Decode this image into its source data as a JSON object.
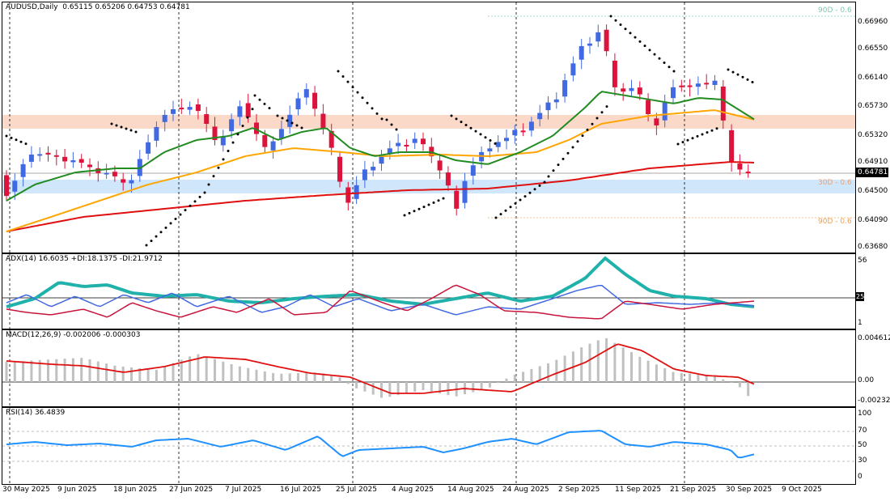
{
  "symbol_title": "AUDUSD,Daily  0.65115 0.65206 0.64753 0.64781",
  "colors": {
    "bull": "#4169e1",
    "bear": "#dc143c",
    "sma_fast": "#228b22",
    "sma_mid": "#ffa500",
    "sma_slow": "#e01010",
    "adx": "#20b2aa",
    "plus_di": "#4169e1",
    "minus_di": "#c8143c",
    "macd_hist": "#c0c0c0",
    "macd_signal": "#e01010",
    "rsi": "#1e90ff",
    "resistance_zone": "#fbd9c8",
    "support_zone": "#cfe6fb"
  },
  "price_axis": [
    "0.66960",
    "0.66550",
    "0.66140",
    "0.65730",
    "0.65320",
    "0.64910",
    "0.64500",
    "0.64090",
    "0.63680"
  ],
  "current_price": "0.64781",
  "level_labels": {
    "top": "90D - 0.6",
    "mid": "30D - 0.6",
    "bottom": "90D - 0.6"
  },
  "adx": {
    "title": "ADX(14) 16.6035 +DI:18.1375 -DI:21.9712",
    "axis": [
      "56",
      "1"
    ],
    "level": "25"
  },
  "macd": {
    "title": "MACD(12,26,9) -0.002006 -0.000303",
    "axis": [
      "0.004612",
      "0.00",
      "-0.002321"
    ]
  },
  "rsi": {
    "title": "RSI(14) 36.4839",
    "axis": [
      "100",
      "70",
      "50",
      "30",
      "0"
    ]
  },
  "dates": [
    "30 May 2025",
    "9 Jun 2025",
    "18 Jun 2025",
    "27 Jun 2025",
    "7 Jul 2025",
    "16 Jul 2025",
    "25 Jul 2025",
    "4 Aug 2025",
    "14 Aug 2025",
    "24 Aug 2025",
    "2 Sep 2025",
    "11 Sep 2025",
    "21 Sep 2025",
    "30 Sep 2025",
    "9 Oct 2025"
  ]
}
